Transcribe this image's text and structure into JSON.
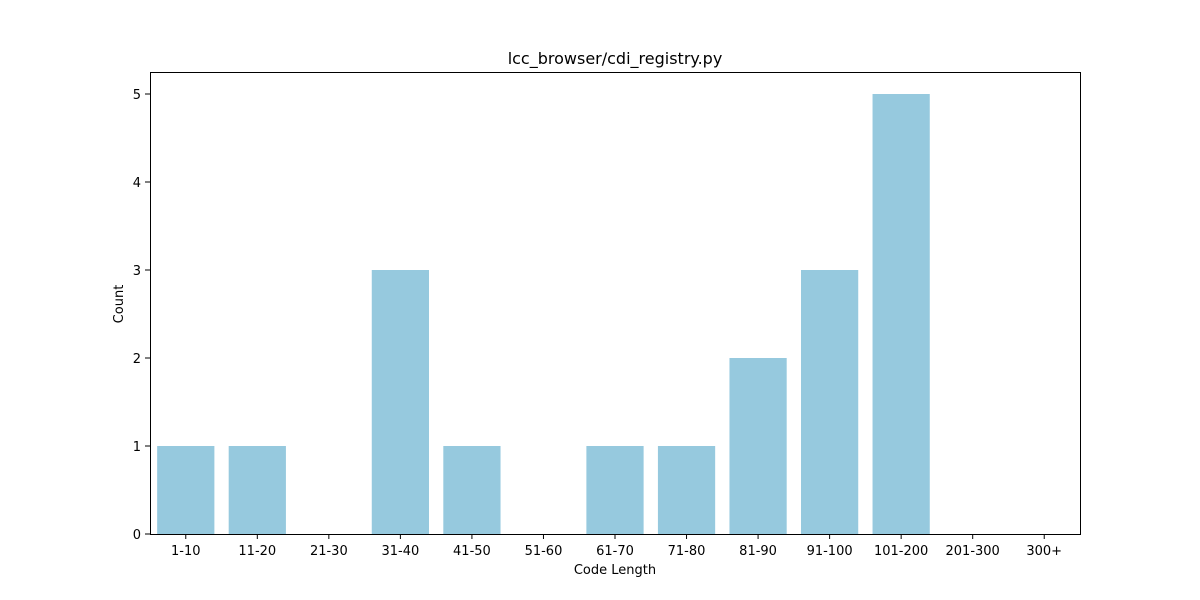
{
  "chart_data": {
    "type": "bar",
    "title": "lcc_browser/cdi_registry.py",
    "xlabel": "Code Length",
    "ylabel": "Count",
    "categories": [
      "1-10",
      "11-20",
      "21-30",
      "31-40",
      "41-50",
      "51-60",
      "61-70",
      "71-80",
      "81-90",
      "91-100",
      "101-200",
      "201-300",
      "300+"
    ],
    "values": [
      1,
      1,
      0,
      3,
      1,
      0,
      1,
      1,
      2,
      3,
      5,
      0,
      0
    ],
    "ylim": [
      0,
      5.25
    ],
    "yticks": [
      0,
      1,
      2,
      3,
      4,
      5
    ],
    "grid": false,
    "legend": "none",
    "bar_color": "#96c9de"
  }
}
